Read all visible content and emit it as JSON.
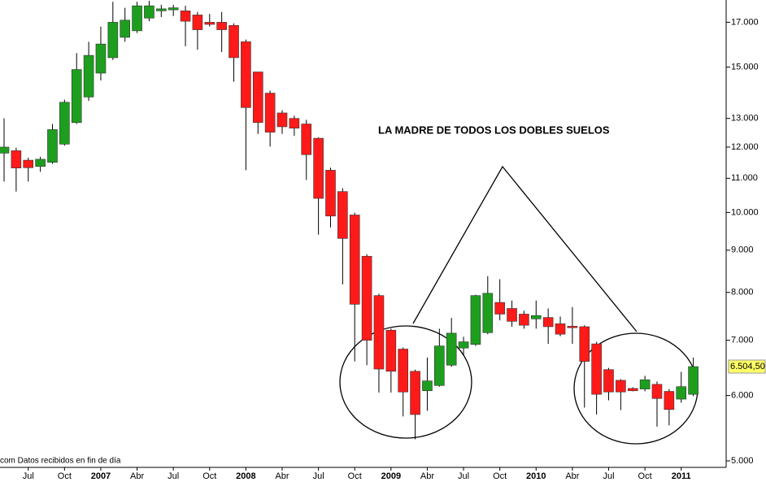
{
  "chart_data": {
    "type": "candlestick",
    "annotation": "LA MADRE DE TODOS LOS DOBLES SUELOS",
    "footer": "com Datos recibidos en fin de día",
    "categories": [
      null,
      null,
      "Jul",
      null,
      null,
      "Oct",
      null,
      null,
      "2007",
      null,
      null,
      "Abr",
      null,
      null,
      "Jul",
      null,
      null,
      "Oct",
      null,
      null,
      "2008",
      null,
      null,
      "Abr",
      null,
      null,
      "Jul",
      null,
      null,
      "Oct",
      null,
      null,
      "2009",
      null,
      null,
      "Abr",
      null,
      null,
      "Jul",
      null,
      null,
      "Oct",
      null,
      null,
      "2010",
      null,
      null,
      "Abr",
      null,
      null,
      "Jul",
      null,
      null,
      "Oct",
      null,
      null,
      "2011",
      null
    ],
    "open": [
      11800,
      11880,
      11570,
      11370,
      11500,
      12100,
      12850,
      13800,
      14750,
      15400,
      16300,
      16600,
      17200,
      17550,
      17600,
      17550,
      17350,
      17000,
      17000,
      16850,
      16100,
      14800,
      13950,
      13200,
      13000,
      12800,
      12300,
      11250,
      10600,
      9930,
      8850,
      7930,
      7200,
      6830,
      6420,
      6080,
      6170,
      6530,
      6850,
      6920,
      7150,
      7780,
      7650,
      7530,
      7430,
      7460,
      7330,
      7280,
      7270,
      6930,
      6450,
      6260,
      6120,
      6110,
      6190,
      6070,
      5940,
      6020
    ],
    "high": [
      13000,
      11980,
      11650,
      11680,
      12800,
      13700,
      15600,
      16100,
      16800,
      18000,
      17700,
      18000,
      18050,
      17850,
      17850,
      17800,
      17500,
      17400,
      17500,
      16950,
      16200,
      14800,
      14050,
      13300,
      13100,
      12950,
      12330,
      11330,
      10700,
      9990,
      8900,
      7970,
      7230,
      6860,
      6450,
      6670,
      7230,
      7450,
      7070,
      7950,
      8370,
      8300,
      7820,
      7600,
      7820,
      7650,
      7480,
      7680,
      7300,
      6970,
      6480,
      6280,
      6140,
      6340,
      6240,
      6110,
      6410,
      6670
    ],
    "low": [
      10900,
      10600,
      10900,
      11200,
      11450,
      12050,
      12800,
      13650,
      14450,
      15300,
      16100,
      16500,
      17050,
      17250,
      17300,
      15900,
      15750,
      16800,
      15650,
      14400,
      11250,
      12450,
      12020,
      12450,
      12380,
      10950,
      9400,
      9590,
      8180,
      6600,
      6530,
      6050,
      6050,
      5660,
      5310,
      5750,
      6150,
      6500,
      6720,
      6890,
      7120,
      7400,
      7270,
      7230,
      7230,
      6930,
      7080,
      6930,
      5800,
      5690,
      5920,
      5760,
      6070,
      6070,
      5500,
      5520,
      5880,
      5990
    ],
    "close": [
      12000,
      11320,
      11330,
      11600,
      12600,
      13600,
      14900,
      15500,
      16000,
      17000,
      17100,
      17800,
      17800,
      17650,
      17700,
      17050,
      16650,
      16900,
      16650,
      15400,
      13400,
      12850,
      12510,
      12700,
      12650,
      11750,
      10400,
      9900,
      9300,
      7740,
      7000,
      6460,
      6420,
      6060,
      5690,
      6250,
      6890,
      7140,
      6970,
      7930,
      7980,
      7530,
      7380,
      7300,
      7500,
      7270,
      7120,
      7250,
      6600,
      6020,
      6060,
      6060,
      6080,
      6270,
      5950,
      5770,
      6150,
      6504.5
    ],
    "up_color": "#1e9e1e",
    "down_color": "#ff1a1a",
    "log_scale": true,
    "ylim": [
      4910,
      18090
    ],
    "yticks": [
      {
        "value": 5000,
        "label": "5.000"
      },
      {
        "value": 6000,
        "label": "6.000"
      },
      {
        "value": 7000,
        "label": "7.000"
      },
      {
        "value": 8000,
        "label": "8.000"
      },
      {
        "value": 9000,
        "label": "9.000"
      },
      {
        "value": 10000,
        "label": "10.000"
      },
      {
        "value": 11000,
        "label": "11.000"
      },
      {
        "value": 12000,
        "label": "12.000"
      },
      {
        "value": 13000,
        "label": "13.000"
      },
      {
        "value": 15000,
        "label": "15.000"
      },
      {
        "value": 17000,
        "label": "17.000"
      }
    ],
    "last_price": {
      "value": 6504.5,
      "label": "6.504,50"
    }
  }
}
